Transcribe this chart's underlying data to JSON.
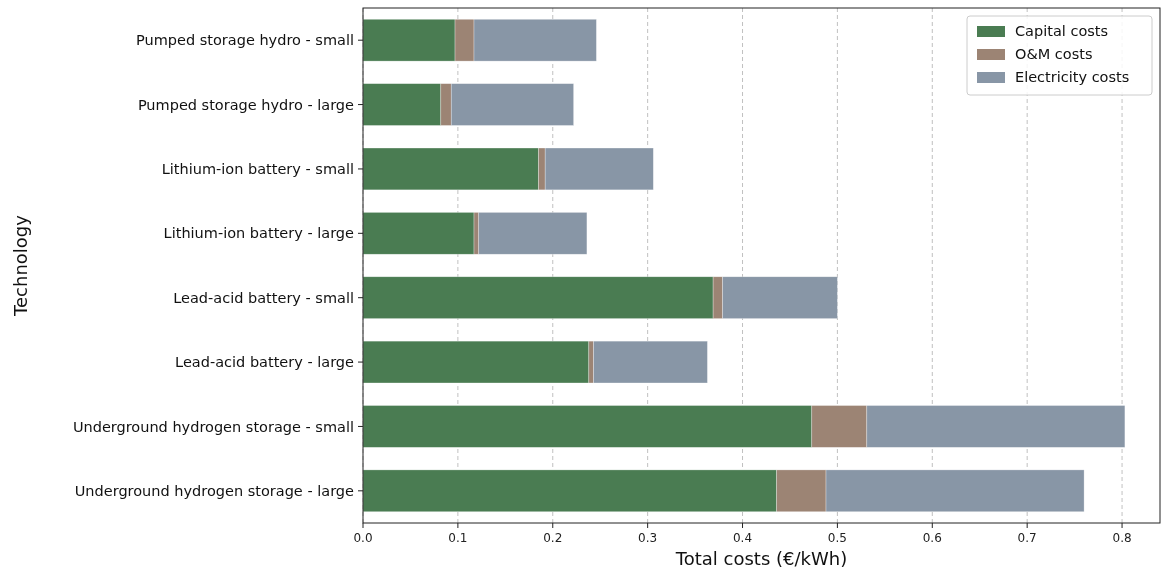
{
  "chart_data": {
    "type": "bar",
    "orientation": "horizontal",
    "stacked": true,
    "xlabel": "Total costs (€/kWh)",
    "ylabel": "Technology",
    "categories": [
      "Pumped storage hydro - small",
      "Pumped storage hydro - large",
      "Lithium-ion battery - small",
      "Lithium-ion battery - large",
      "Lead-acid battery - small",
      "Lead-acid battery - large",
      "Underground hydrogen storage - small",
      "Underground hydrogen storage - large"
    ],
    "series": [
      {
        "name": "Capital costs",
        "color": "#4a7c52",
        "values": [
          0.097,
          0.082,
          0.185,
          0.117,
          0.369,
          0.238,
          0.473,
          0.436
        ]
      },
      {
        "name": "O&M costs",
        "color": "#9c8474",
        "values": [
          0.02,
          0.011,
          0.007,
          0.005,
          0.01,
          0.005,
          0.058,
          0.052
        ]
      },
      {
        "name": "Electricity costs",
        "color": "#8896a6",
        "values": [
          0.129,
          0.129,
          0.114,
          0.114,
          0.121,
          0.12,
          0.272,
          0.272
        ]
      }
    ],
    "xlim": [
      0,
      0.84
    ],
    "xticks": [
      {
        "value": 0,
        "label": "0.0"
      },
      0.1,
      0.2,
      0.3,
      0.4,
      0.5,
      0.6,
      0.7,
      0.8
    ],
    "grid": "x",
    "legend": "top right"
  }
}
